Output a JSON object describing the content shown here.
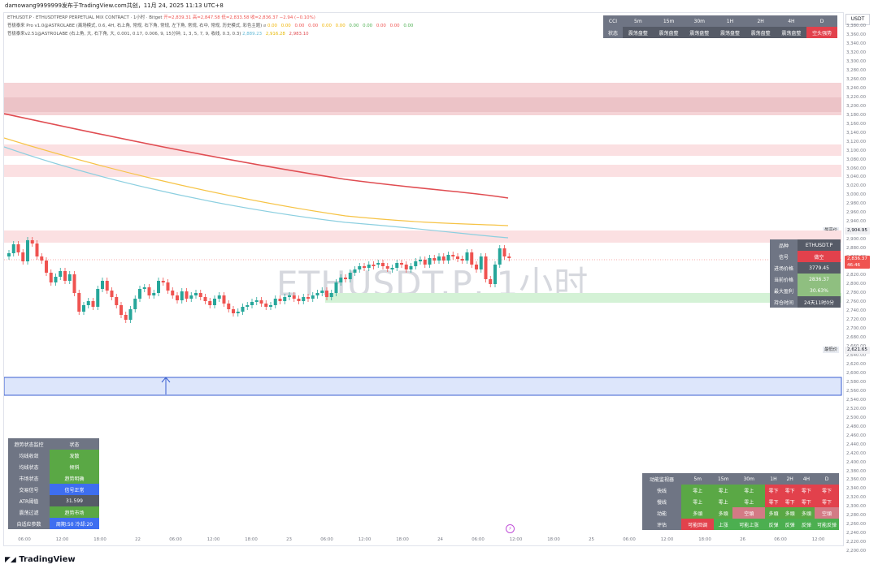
{
  "header": {
    "publish_line": "damowang9999999发布于TradingView.com共创，11月 24, 2025 11:13 UTC+8"
  },
  "legend": {
    "line1": {
      "symbol": "ETHUSDT.P · ETHUSDTPERP PERPETUAL MIX CONTRACT · 1小时 · Bitget",
      "open": "开=2,839.31",
      "high": "高=2,847.58",
      "low": "低=2,833.58",
      "close": "收=2,836.37",
      "change": "−2.94 (−0.10%)"
    },
    "line2": {
      "name": "苍极泰来 Pro v1.0@ASTROLABE (离场模式, 0.6, 4H, 右上角, 常规, 右下角, 常规, 左下角, 常规, 右中, 常规, 历史模式, 彩色主题)",
      "values": [
        "0.00",
        "0.00",
        "0.00",
        "0.00",
        "0.00",
        "0.00",
        "0.00",
        "0.00",
        "0.00",
        "0.00",
        "0.00"
      ]
    },
    "line3": {
      "name": "苍极泰来v2.51@ASTROLABE (右上角, 大, 右下角, 大, 0.001, 0.17, 0.006, 9, 15分钟, 1, 3, 5, 7, 9, 收线, 0.3, 0.3)",
      "values": [
        "2,889.23",
        "2,916.28",
        "2,983.10"
      ]
    }
  },
  "colors": {
    "up": "#26a69a",
    "down": "#ef5350",
    "ma_red": "#e04d52",
    "ma_yellow": "#f6c345",
    "ma_cyan": "#8ccfe0",
    "watermark": "#d6d8de"
  },
  "yaxis": {
    "unit_label": "USDT",
    "ticks": [
      "3,380.00",
      "3,360.00",
      "3,340.00",
      "3,320.00",
      "3,300.00",
      "3,280.00",
      "3,260.00",
      "3,240.00",
      "3,220.00",
      "3,200.00",
      "3,180.00",
      "3,160.00",
      "3,140.00",
      "3,120.00",
      "3,100.00",
      "3,080.00",
      "3,060.00",
      "3,040.00",
      "3,020.00",
      "3,000.00",
      "2,980.00",
      "2,960.00",
      "2,940.00",
      "2,920.00",
      "2,900.00",
      "2,880.00",
      "2,860.00",
      "2,840.00",
      "2,820.00",
      "2,800.00",
      "2,780.00",
      "2,760.00",
      "2,740.00",
      "2,720.00",
      "2,700.00",
      "2,680.00",
      "2,660.00",
      "2,640.00",
      "2,620.00",
      "2,600.00",
      "2,580.00",
      "2,560.00",
      "2,540.00",
      "2,520.00",
      "2,500.00",
      "2,480.00",
      "2,460.00",
      "2,440.00",
      "2,420.00",
      "2,400.00",
      "2,380.00",
      "2,360.00",
      "2,340.00",
      "2,320.00",
      "2,300.00",
      "2,280.00",
      "2,260.00",
      "2,240.00",
      "2,220.00",
      "2,200.00"
    ],
    "high_label": "最高价",
    "high_value": "2,904.95",
    "low_label": "最低价",
    "low_value": "2,621.65",
    "last_price": "2,836.37",
    "countdown": "46:46"
  },
  "watermark": "ETHUSDT.P, 1小时",
  "xaxis": {
    "ticks": [
      "06:00",
      "12:00",
      "18:00",
      "22",
      "06:00",
      "12:00",
      "18:00",
      "23",
      "06:00",
      "12:00",
      "18:00",
      "24",
      "06:00",
      "12:00",
      "18:00",
      "25",
      "06:00",
      "12:00",
      "18:00",
      "26",
      "06:00",
      "12:00"
    ]
  },
  "cci_table": {
    "headers": [
      "CCI",
      "5m",
      "15m",
      "30m",
      "1H",
      "2H",
      "4H",
      "D"
    ],
    "row_label": "状态",
    "values": [
      "震荡盘整",
      "震荡盘整",
      "震荡盘整",
      "震荡盘整",
      "震荡盘整",
      "震荡盘整",
      "空头强势"
    ]
  },
  "info_table": {
    "rows": [
      {
        "label": "品种",
        "value": "ETHUSDT.P"
      },
      {
        "label": "信号",
        "value": "做空"
      },
      {
        "label": "进场价格",
        "value": "3779.45"
      },
      {
        "label": "当前价格",
        "value": "2836.37"
      },
      {
        "label": "最大盈利",
        "value": "30.63%"
      },
      {
        "label": "持仓时间",
        "value": "24天11时0分"
      }
    ]
  },
  "trend_table": {
    "header": [
      "趋势状态监控",
      "状态"
    ],
    "rows": [
      {
        "label": "均线收敛",
        "value": "发散"
      },
      {
        "label": "均线状态",
        "value": "倾斜"
      },
      {
        "label": "市场状态",
        "value": "趋势明确"
      },
      {
        "label": "交易信号",
        "value": "信号正常"
      },
      {
        "label": "ATR阈值",
        "value": "31.599"
      },
      {
        "label": "震荡过滤",
        "value": "趋势市场"
      },
      {
        "label": "自适应参数",
        "value": "周期:50 冷却:20"
      }
    ]
  },
  "momentum_table": {
    "headers": [
      "动能监视器",
      "5m",
      "15m",
      "30m",
      "1H",
      "2H",
      "4H",
      "D"
    ],
    "rows": [
      {
        "label": "快线",
        "values": [
          "零上",
          "零上",
          "零上",
          "零下",
          "零下",
          "零下",
          "零下"
        ]
      },
      {
        "label": "慢线",
        "values": [
          "零上",
          "零上",
          "零上",
          "零下",
          "零下",
          "零下",
          "零下"
        ]
      },
      {
        "label": "动能",
        "values": [
          "多頭",
          "多頭",
          "空頭",
          "多頭",
          "多頭",
          "多頭",
          "空頭"
        ]
      },
      {
        "label": "评估",
        "values": [
          "可能回调",
          "上涨",
          "可能上涨",
          "反弹",
          "反弹",
          "反弹",
          "可能反弹"
        ]
      }
    ]
  },
  "brand": "TradingView"
}
